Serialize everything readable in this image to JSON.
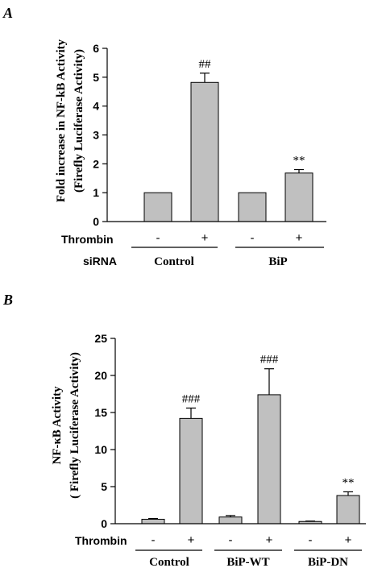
{
  "chart_data": [
    {
      "panel": "A",
      "type": "bar",
      "ylabel_line1": "Fold increase in NF-kB Activity",
      "ylabel_line2": "(Firefly Luciferase Activity)",
      "ylim": [
        0,
        6
      ],
      "yticks": [
        "0",
        "1",
        "2",
        "3",
        "4",
        "5",
        "6"
      ],
      "row1_label": "Thrombin",
      "row2_label": "siRNA",
      "thrombin_signs": [
        "-",
        "+",
        "-",
        "+"
      ],
      "groups": [
        "Control",
        "BiP"
      ],
      "values": [
        1.0,
        4.82,
        1.0,
        1.68
      ],
      "errors": [
        0,
        0.32,
        0,
        0.12
      ],
      "annotations": [
        "",
        "##",
        "",
        "**"
      ]
    },
    {
      "panel": "B",
      "type": "bar",
      "ylabel_line1": "NF-κB Activity",
      "ylabel_line2": "( Firefly Luciferase Activity)",
      "ylim": [
        0,
        25
      ],
      "yticks": [
        "0",
        "5",
        "10",
        "15",
        "20",
        "25"
      ],
      "row1_label": "Thrombin",
      "thrombin_signs": [
        "-",
        "+",
        "-",
        "+",
        "-",
        "+"
      ],
      "groups": [
        "Control",
        "BiP-WT",
        "BiP-DN"
      ],
      "values": [
        0.6,
        14.2,
        0.9,
        17.4,
        0.3,
        3.8
      ],
      "errors": [
        0.1,
        1.4,
        0.2,
        3.5,
        0.05,
        0.5
      ],
      "annotations": [
        "",
        "###",
        "",
        "###",
        "",
        "**"
      ]
    }
  ]
}
